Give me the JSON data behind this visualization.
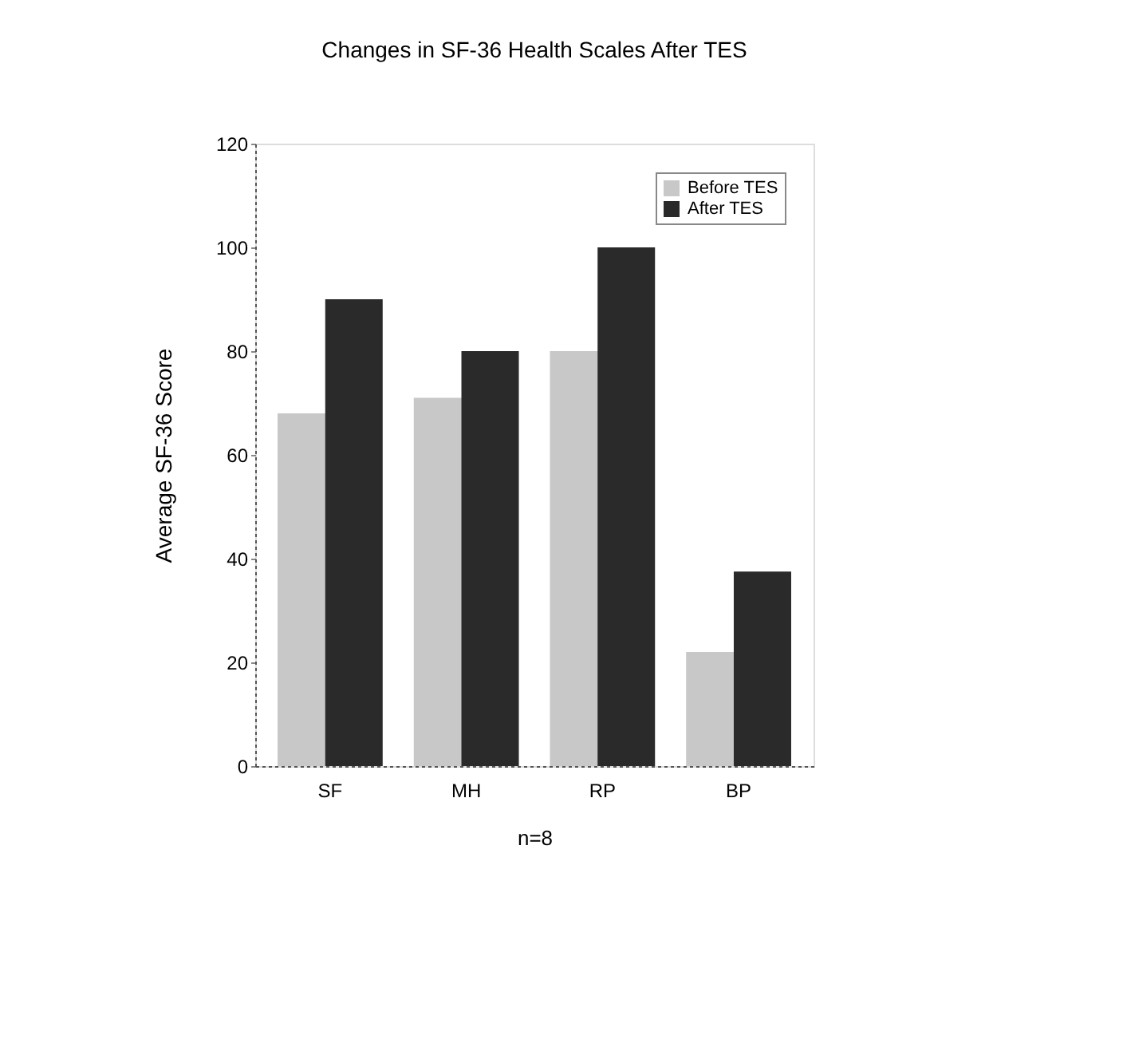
{
  "chart_data": {
    "type": "bar",
    "title": "Changes in SF-36 Health Scales After TES",
    "xlabel": "n=8",
    "ylabel": "Average SF-36 Score",
    "categories": [
      "SF",
      "MH",
      "RP",
      "BP"
    ],
    "series": [
      {
        "name": "Before TES",
        "color": "#c8c8c8",
        "values": [
          68,
          71,
          80,
          22
        ]
      },
      {
        "name": "After TES",
        "color": "#2a2a2a",
        "values": [
          90,
          80,
          100,
          37.5
        ]
      }
    ],
    "ylim": [
      0,
      120
    ],
    "yticks": [
      0,
      20,
      40,
      60,
      80,
      100,
      120
    ],
    "grid": false,
    "legend": "top right"
  }
}
